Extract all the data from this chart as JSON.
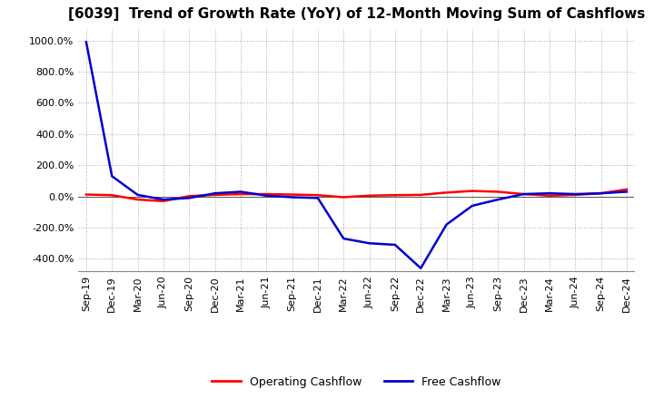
{
  "title": "[6039]  Trend of Growth Rate (YoY) of 12-Month Moving Sum of Cashflows",
  "title_fontsize": 11,
  "legend_labels": [
    "Operating Cashflow",
    "Free Cashflow"
  ],
  "legend_colors": [
    "#ff0000",
    "#0000cd"
  ],
  "ylim": [
    -480,
    1080
  ],
  "yticks": [
    -400,
    -200,
    0,
    200,
    400,
    600,
    800,
    1000
  ],
  "ytick_labels": [
    "-400.0%",
    "-200.0%",
    "0.0%",
    "200.0%",
    "400.0%",
    "600.0%",
    "800.0%",
    "1000.0%"
  ],
  "background_color": "#ffffff",
  "grid_color": "#aaaaaa",
  "x_labels": [
    "Sep-19",
    "Dec-19",
    "Mar-20",
    "Jun-20",
    "Sep-20",
    "Dec-20",
    "Mar-21",
    "Jun-21",
    "Sep-21",
    "Dec-21",
    "Mar-22",
    "Jun-22",
    "Sep-22",
    "Dec-22",
    "Mar-23",
    "Jun-23",
    "Sep-23",
    "Dec-23",
    "Mar-24",
    "Jun-24",
    "Sep-24",
    "Dec-24"
  ],
  "operating_cashflow": [
    12,
    8,
    -20,
    -30,
    2,
    10,
    15,
    15,
    12,
    8,
    -5,
    5,
    8,
    10,
    25,
    35,
    30,
    15,
    5,
    10,
    20,
    45
  ],
  "free_cashflow": [
    990,
    130,
    10,
    -20,
    -10,
    20,
    30,
    5,
    -5,
    -10,
    -270,
    -300,
    -310,
    -460,
    -180,
    -60,
    -20,
    15,
    20,
    15,
    20,
    30
  ]
}
